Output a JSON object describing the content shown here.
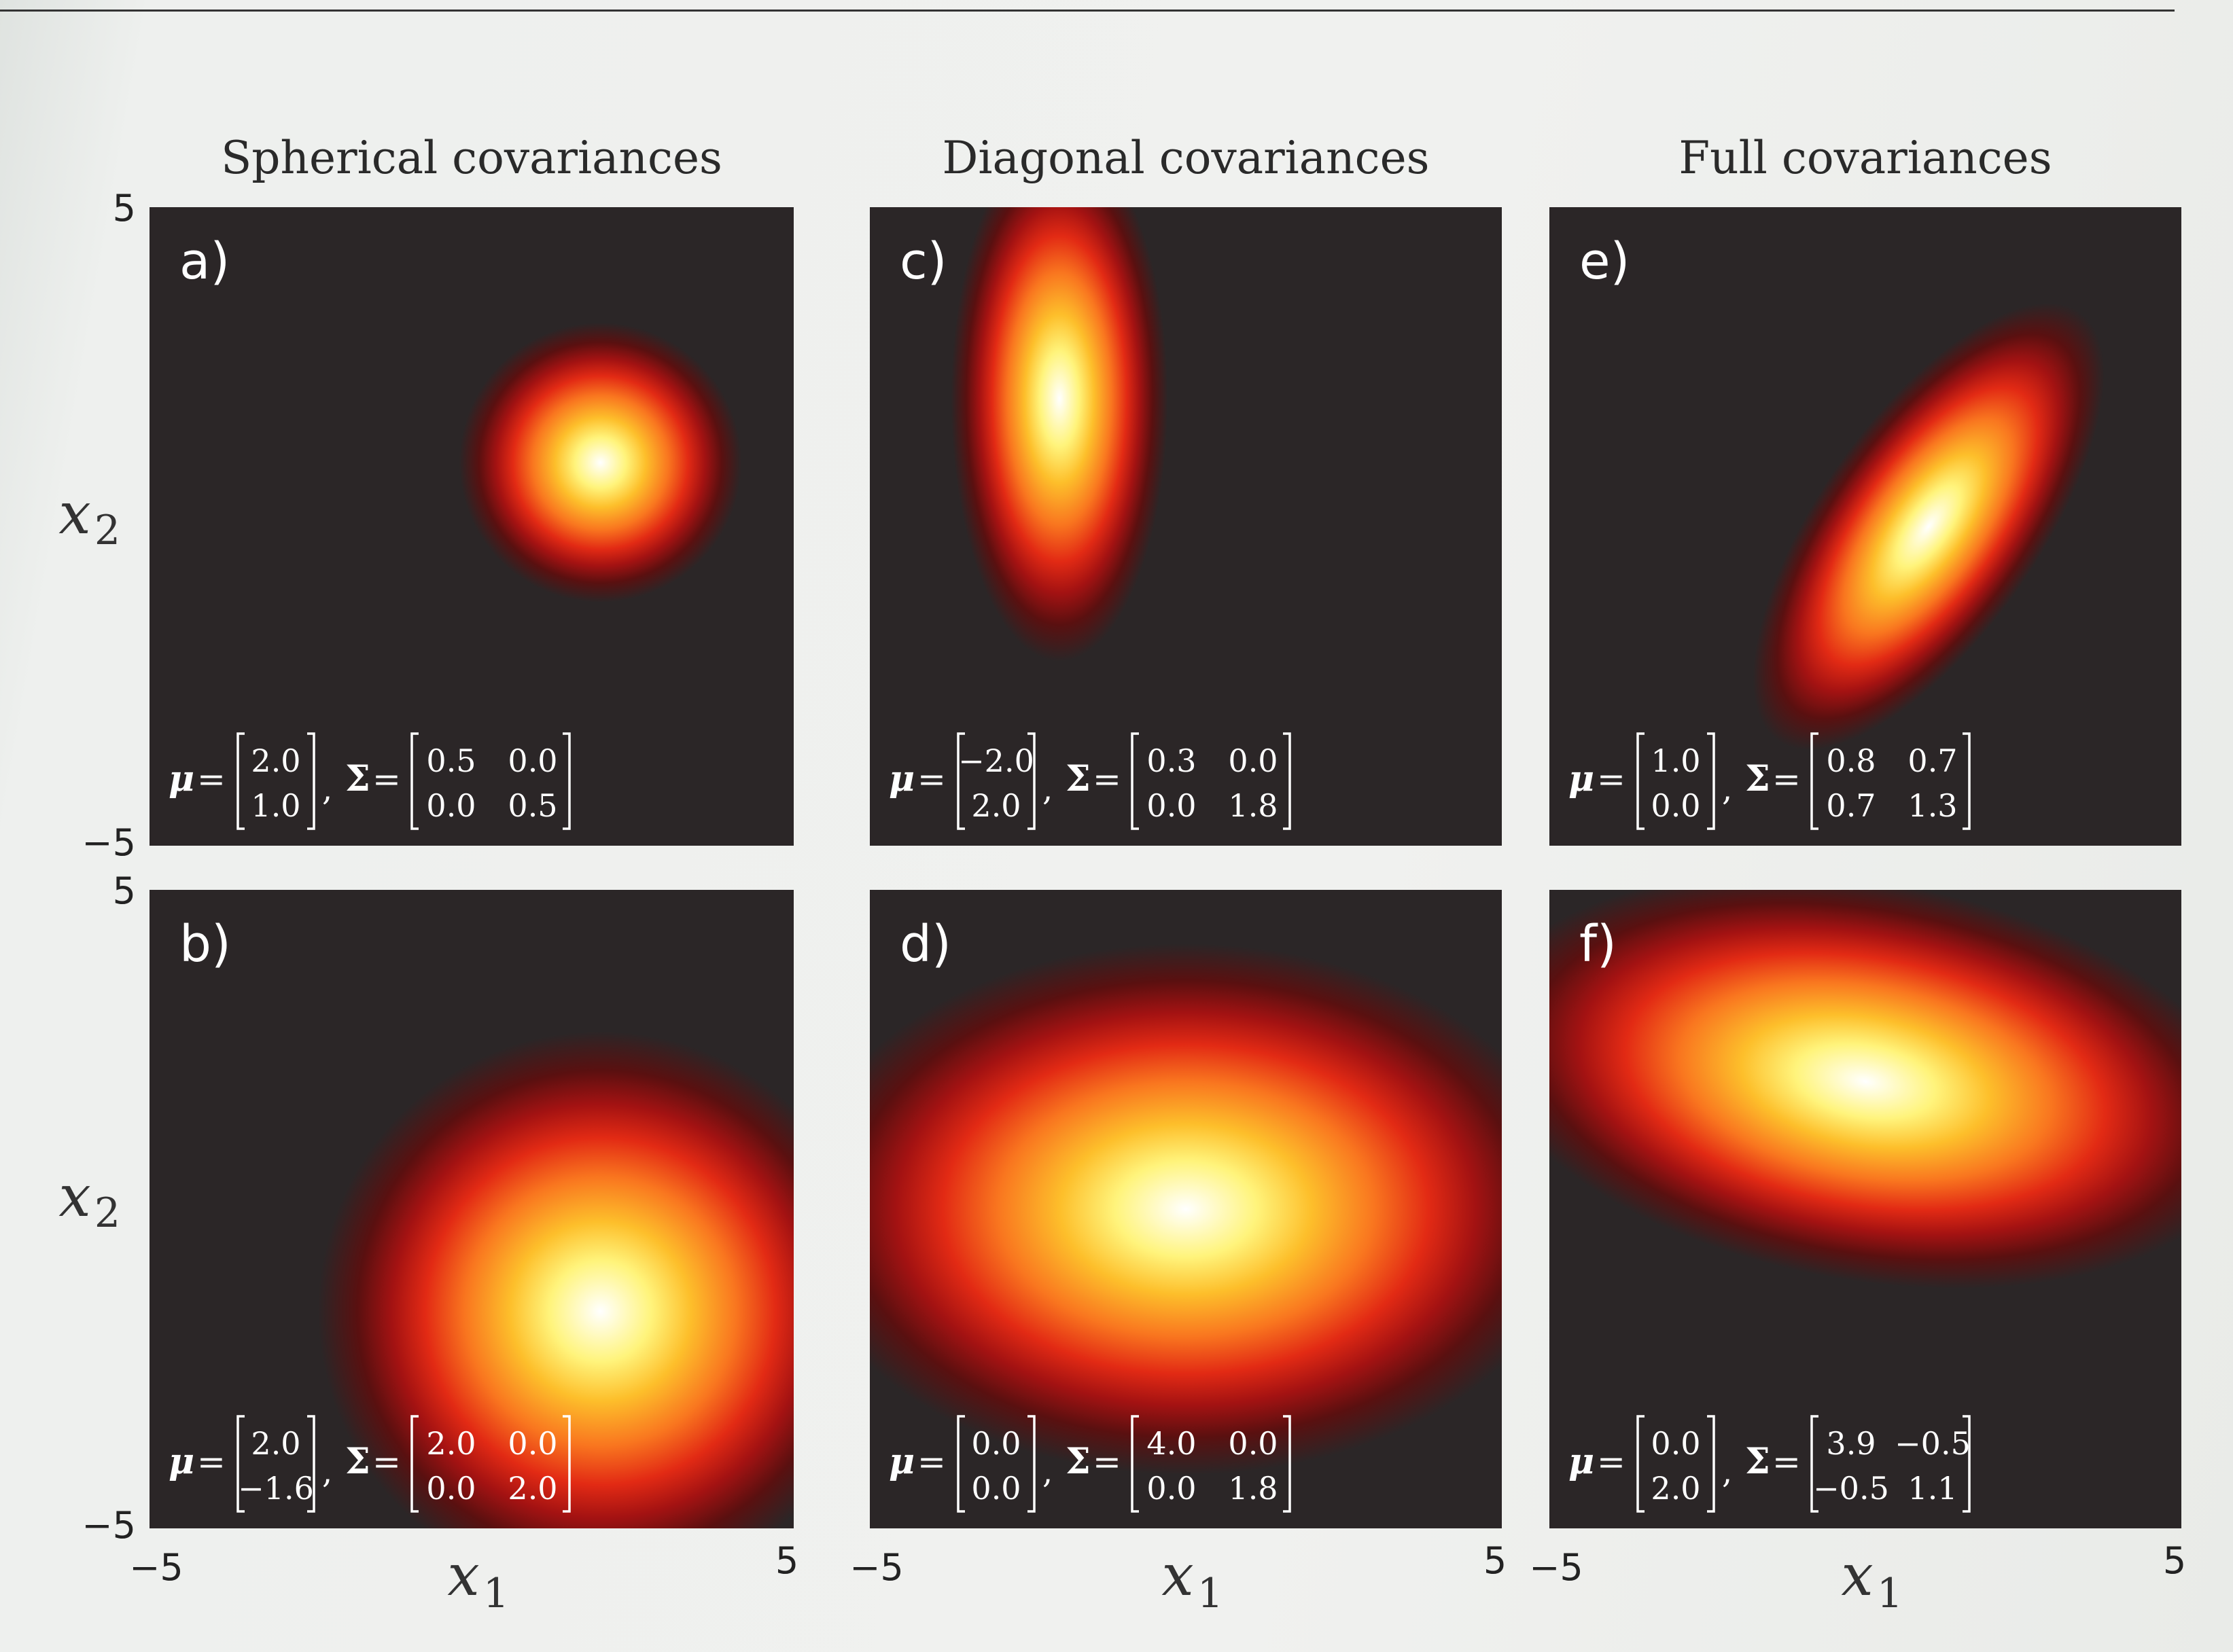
{
  "columns": [
    {
      "title": "Spherical covariances"
    },
    {
      "title": "Diagonal covariances"
    },
    {
      "title": "Full covariances"
    }
  ],
  "axes": {
    "xlabel_base": "x",
    "xlabel_sub": "1",
    "ylabel_base": "x",
    "ylabel_sub": "2",
    "xmin_label": "−5",
    "xmax_label": "5",
    "ymin_label": "−5",
    "ymax_label": "5"
  },
  "colors": {
    "background": "#2b2627",
    "colormap": [
      "#2b2627",
      "#5a1010",
      "#a31212",
      "#e22a14",
      "#f9761f",
      "#fdbf2b",
      "#fff47c",
      "#ffffff"
    ]
  },
  "chart_data": [
    {
      "type": "heatmap",
      "panel_label": "a)",
      "mean": [
        2.0,
        1.0
      ],
      "cov": [
        [
          0.5,
          0.0
        ],
        [
          0.0,
          0.5
        ]
      ],
      "mu_text": [
        "2.0",
        "1.0"
      ],
      "sigma_text": [
        [
          "0.5",
          "0.0"
        ],
        [
          "0.0",
          "0.5"
        ]
      ],
      "xlim": [
        -5,
        5
      ],
      "ylim": [
        -5,
        5
      ]
    },
    {
      "type": "heatmap",
      "panel_label": "b)",
      "mean": [
        2.0,
        -1.6
      ],
      "cov": [
        [
          2.0,
          0.0
        ],
        [
          0.0,
          2.0
        ]
      ],
      "mu_text": [
        "2.0",
        "−1.6"
      ],
      "sigma_text": [
        [
          "2.0",
          "0.0"
        ],
        [
          "0.0",
          "2.0"
        ]
      ],
      "xlim": [
        -5,
        5
      ],
      "ylim": [
        -5,
        5
      ]
    },
    {
      "type": "heatmap",
      "panel_label": "c)",
      "mean": [
        -2.0,
        2.0
      ],
      "cov": [
        [
          0.3,
          0.0
        ],
        [
          0.0,
          1.8
        ]
      ],
      "mu_text": [
        "−2.0",
        "2.0"
      ],
      "sigma_text": [
        [
          "0.3",
          "0.0"
        ],
        [
          "0.0",
          "1.8"
        ]
      ],
      "xlim": [
        -5,
        5
      ],
      "ylim": [
        -5,
        5
      ]
    },
    {
      "type": "heatmap",
      "panel_label": "d)",
      "mean": [
        0.0,
        0.0
      ],
      "cov": [
        [
          4.0,
          0.0
        ],
        [
          0.0,
          1.8
        ]
      ],
      "mu_text": [
        "0.0",
        "0.0"
      ],
      "sigma_text": [
        [
          "4.0",
          "0.0"
        ],
        [
          "0.0",
          "1.8"
        ]
      ],
      "xlim": [
        -5,
        5
      ],
      "ylim": [
        -5,
        5
      ]
    },
    {
      "type": "heatmap",
      "panel_label": "e)",
      "mean": [
        1.0,
        0.0
      ],
      "cov": [
        [
          0.8,
          0.7
        ],
        [
          0.7,
          1.3
        ]
      ],
      "mu_text": [
        "1.0",
        "0.0"
      ],
      "sigma_text": [
        [
          "0.8",
          "0.7"
        ],
        [
          "0.7",
          "1.3"
        ]
      ],
      "xlim": [
        -5,
        5
      ],
      "ylim": [
        -5,
        5
      ]
    },
    {
      "type": "heatmap",
      "panel_label": "f)",
      "mean": [
        0.0,
        2.0
      ],
      "cov": [
        [
          3.9,
          -0.5
        ],
        [
          -0.5,
          1.1
        ]
      ],
      "mu_text": [
        "0.0",
        "2.0"
      ],
      "sigma_text": [
        [
          "3.9",
          "−0.5"
        ],
        [
          "−0.5",
          "1.1"
        ]
      ],
      "xlim": [
        -5,
        5
      ],
      "ylim": [
        -5,
        5
      ]
    }
  ]
}
